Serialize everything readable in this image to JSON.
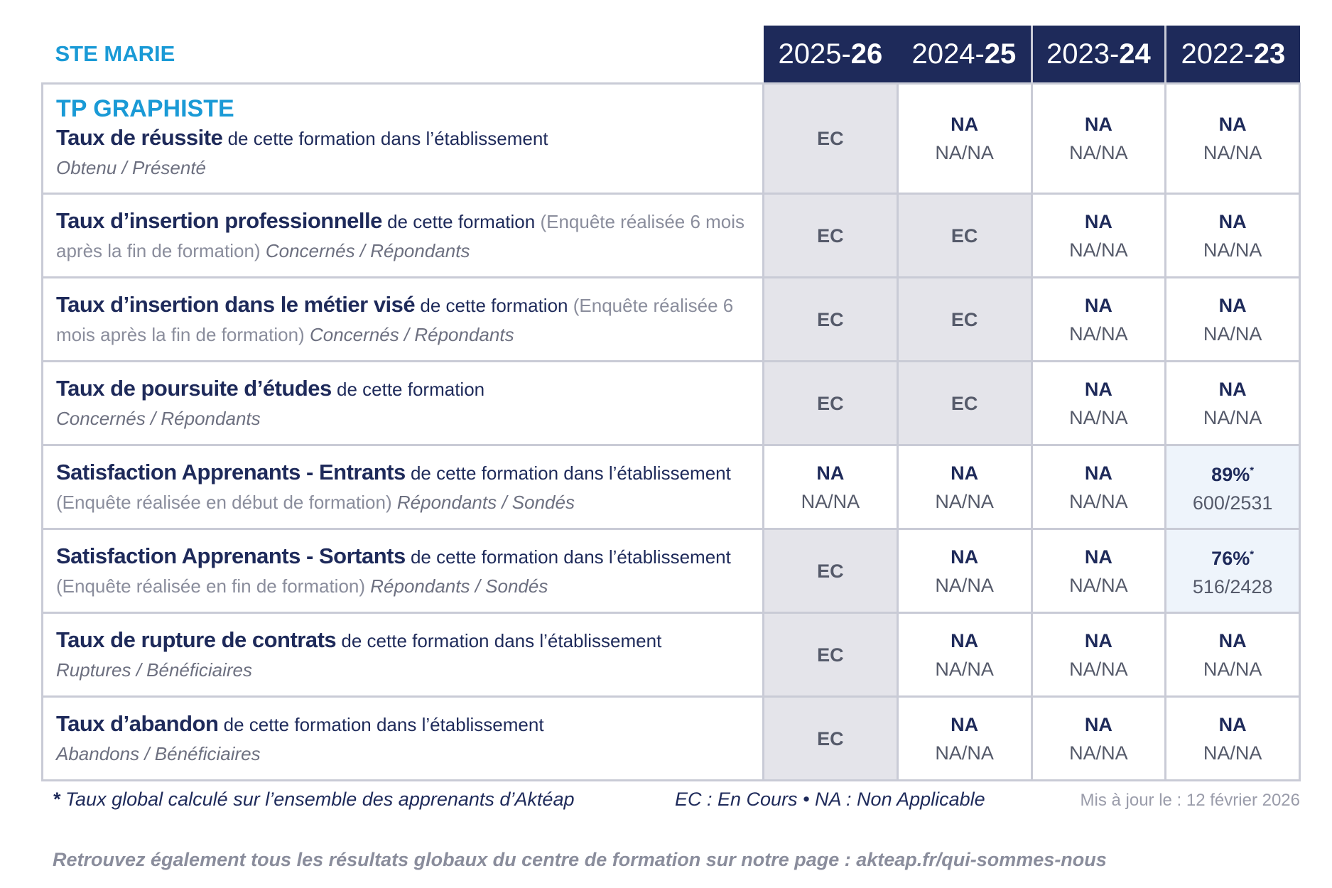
{
  "header": {
    "school": "STE MARIE",
    "years": [
      {
        "start": "2025-",
        "end": "26"
      },
      {
        "start": "2024-",
        "end": "25"
      },
      {
        "start": "2023-",
        "end": "24"
      },
      {
        "start": "2022-",
        "end": "23"
      }
    ]
  },
  "table": {
    "program": "TP GRAPHISTE",
    "rows": [
      {
        "label": "Taux de réussite",
        "text": "de cette formation dans l’établissement",
        "units": "Obtenu / Présenté",
        "cells": [
          {
            "status": "EC"
          },
          {
            "value": "NA",
            "ratio": "NA/NA"
          },
          {
            "value": "NA",
            "ratio": "NA/NA"
          },
          {
            "value": "NA",
            "ratio": "NA/NA"
          }
        ]
      },
      {
        "label": "Taux d’insertion professionnelle",
        "text": "de cette formation",
        "survey": "(Enquête réalisée 6 mois après la fin de formation)",
        "units": "Concernés / Répondants",
        "cells": [
          {
            "status": "EC"
          },
          {
            "status": "EC"
          },
          {
            "value": "NA",
            "ratio": "NA/NA"
          },
          {
            "value": "NA",
            "ratio": "NA/NA"
          }
        ]
      },
      {
        "label": "Taux d’insertion dans le métier visé",
        "text": "de cette formation",
        "survey": "(Enquête réalisée 6 mois après la fin de formation)",
        "units": "Concernés / Répondants",
        "cells": [
          {
            "status": "EC"
          },
          {
            "status": "EC"
          },
          {
            "value": "NA",
            "ratio": "NA/NA"
          },
          {
            "value": "NA",
            "ratio": "NA/NA"
          }
        ]
      },
      {
        "label": "Taux de poursuite d’études",
        "text": "de cette formation",
        "units": "Concernés / Répondants",
        "cells": [
          {
            "status": "EC"
          },
          {
            "status": "EC"
          },
          {
            "value": "NA",
            "ratio": "NA/NA"
          },
          {
            "value": "NA",
            "ratio": "NA/NA"
          }
        ]
      },
      {
        "label": "Satisfaction Apprenants - Entrants",
        "text": "de cette formation dans l’établissement",
        "survey": "(Enquête réalisée en début de formation)",
        "units": "Répondants / Sondés",
        "cells": [
          {
            "value": "NA",
            "ratio": "NA/NA"
          },
          {
            "value": "NA",
            "ratio": "NA/NA"
          },
          {
            "value": "NA",
            "ratio": "NA/NA"
          },
          {
            "value": "89%",
            "mark": "*",
            "ratio": "600/2531"
          }
        ]
      },
      {
        "label": "Satisfaction Apprenants - Sortants",
        "text": "de cette formation dans l’établissement",
        "survey": "(Enquête réalisée en fin de formation)",
        "units": "Répondants / Sondés",
        "cells": [
          {
            "status": "EC"
          },
          {
            "value": "NA",
            "ratio": "NA/NA"
          },
          {
            "value": "NA",
            "ratio": "NA/NA"
          },
          {
            "value": "76%",
            "mark": "*",
            "ratio": "516/2428"
          }
        ]
      },
      {
        "label": "Taux de rupture de contrats",
        "text": "de cette formation dans l’établissement",
        "units": "Ruptures / Bénéficiaires",
        "cells": [
          {
            "status": "EC"
          },
          {
            "value": "NA",
            "ratio": "NA/NA"
          },
          {
            "value": "NA",
            "ratio": "NA/NA"
          },
          {
            "value": "NA",
            "ratio": "NA/NA"
          }
        ]
      },
      {
        "label": "Taux d’abandon",
        "text": "de cette formation dans l’établissement",
        "units": "Abandons / Bénéficiaires",
        "cells": [
          {
            "status": "EC"
          },
          {
            "value": "NA",
            "ratio": "NA/NA"
          },
          {
            "value": "NA",
            "ratio": "NA/NA"
          },
          {
            "value": "NA",
            "ratio": "NA/NA"
          }
        ]
      }
    ]
  },
  "footer": {
    "note_mark": "*",
    "note": "Taux global calculé sur l’ensemble des apprenants d’Aktéap",
    "legend_ec": "EC : En Cours",
    "legend_sep": "•",
    "legend_na": "NA : Non Applicable",
    "updated": "Mis à jour le : 12 février 2026",
    "link": "Retrouvez également tous les résultats globaux du centre de formation sur notre page : akteap.fr/qui-sommes-nous"
  }
}
